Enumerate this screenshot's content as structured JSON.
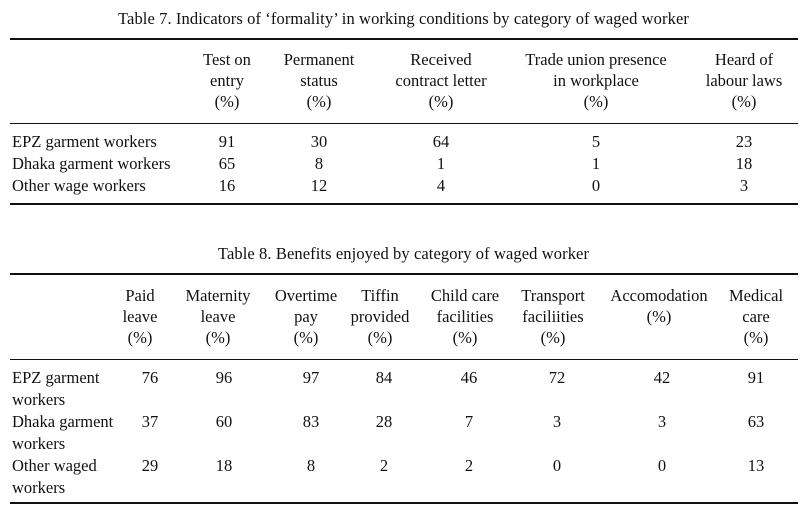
{
  "table7": {
    "caption": "Table 7.   Indicators of ‘formality’ in working conditions by category of waged worker",
    "headers": [
      [
        "Test on",
        "entry",
        "(%)"
      ],
      [
        "Permanent",
        "status",
        "(%)"
      ],
      [
        "Received",
        "contract letter",
        "(%)"
      ],
      [
        "Trade union presence",
        "in workplace",
        "(%)"
      ],
      [
        "Heard of",
        "labour laws",
        "(%)"
      ]
    ],
    "rows": [
      {
        "label": "EPZ garment workers",
        "values": [
          "91",
          "30",
          "64",
          "5",
          "23"
        ]
      },
      {
        "label": "Dhaka garment workers",
        "values": [
          "65",
          "8",
          "1",
          "1",
          "18"
        ]
      },
      {
        "label": "Other wage workers",
        "values": [
          "16",
          "12",
          "4",
          "0",
          "3"
        ]
      }
    ]
  },
  "table8": {
    "caption": "Table 8.   Benefits enjoyed by category of waged worker",
    "headers": [
      [
        "Paid",
        "leave",
        "(%)"
      ],
      [
        "Maternity",
        "leave",
        "(%)"
      ],
      [
        "Overtime",
        "pay",
        "(%)"
      ],
      [
        "Tiffin",
        "provided",
        "(%)"
      ],
      [
        "Child care",
        "facilities",
        "(%)"
      ],
      [
        "Transport",
        "faciliities",
        "(%)"
      ],
      [
        "Accomodation",
        "(%)"
      ],
      [
        "Medical",
        "care",
        "(%)"
      ]
    ],
    "rows": [
      {
        "label": [
          "EPZ garment",
          "workers"
        ],
        "values": [
          "76",
          "96",
          "97",
          "84",
          "46",
          "72",
          "42",
          "91"
        ]
      },
      {
        "label": [
          "Dhaka garment",
          "workers"
        ],
        "values": [
          "37",
          "60",
          "83",
          "28",
          "7",
          "3",
          "3",
          "63"
        ]
      },
      {
        "label": [
          "Other waged",
          "workers"
        ],
        "values": [
          "29",
          "18",
          "8",
          "2",
          "2",
          "0",
          "0",
          "13"
        ]
      }
    ]
  }
}
